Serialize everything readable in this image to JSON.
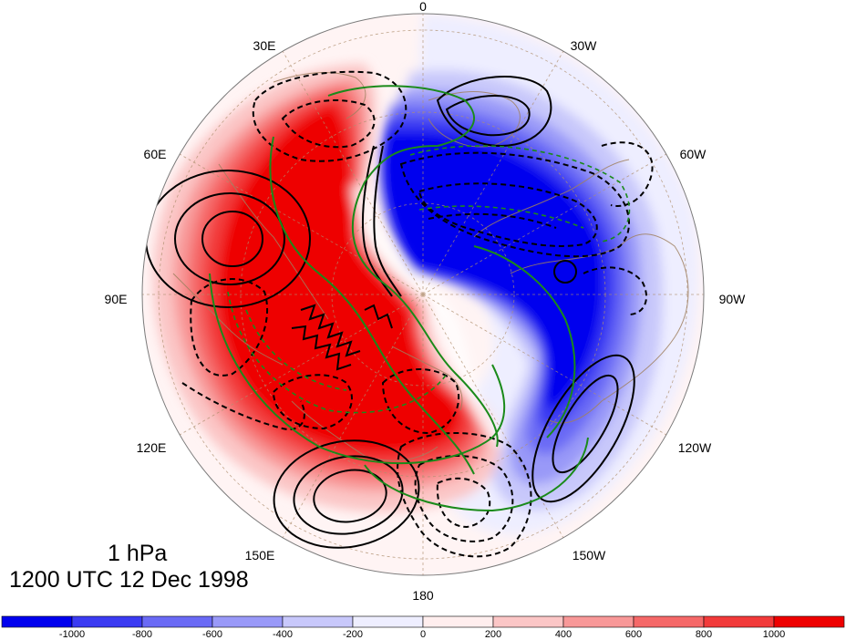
{
  "map": {
    "projection": "north-polar-stereographic",
    "level_label": "1 hPa",
    "time_label": "1200 UTC 12 Dec 1998",
    "lon_labels": [
      "0",
      "30W",
      "60W",
      "90W",
      "120W",
      "150W",
      "180",
      "150E",
      "120E",
      "90E",
      "60E",
      "30E"
    ],
    "shading_colors": {
      "deep_blue": "#0000ee",
      "blue_2": "#3b3bf2",
      "blue_3": "#6a6af5",
      "blue_4": "#9999f8",
      "blue_5": "#c8c8fb",
      "blue_6": "#eeeeff",
      "red_1": "#ffeeee",
      "red_2": "#fbc6c6",
      "red_3": "#f89898",
      "red_4": "#f56868",
      "red_5": "#f23a3a",
      "deep_red": "#ee0000"
    },
    "contour_colors": {
      "black": "#000000",
      "green": "#1a8a1a",
      "coast": "#a08060"
    }
  },
  "colorbar": {
    "ticks": [
      "-1000",
      "-800",
      "-600",
      "-400",
      "-200",
      "0",
      "200",
      "400",
      "600",
      "800",
      "1000"
    ],
    "colors": [
      "#0000ee",
      "#3b3bf2",
      "#6a6af5",
      "#9999f8",
      "#c8c8fb",
      "#eeeeff",
      "#ffeeee",
      "#fbc6c6",
      "#f89898",
      "#f56868",
      "#f23a3a",
      "#ee0000"
    ]
  }
}
